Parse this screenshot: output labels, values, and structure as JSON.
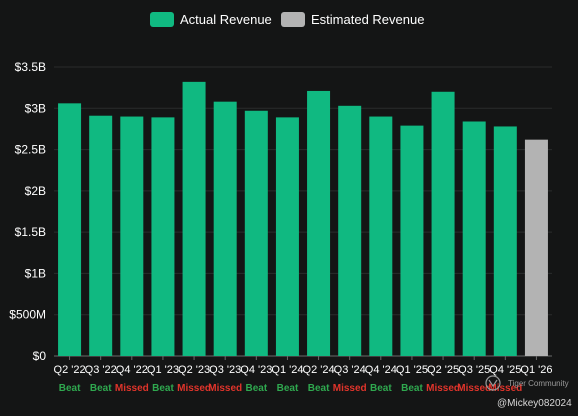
{
  "chart_data": {
    "type": "bar",
    "categories": [
      "Q2 '22",
      "Q3 '22",
      "Q4 '22",
      "Q1 '23",
      "Q2 '23",
      "Q3 '23",
      "Q4 '23",
      "Q1 '24",
      "Q2 '24",
      "Q3 '24",
      "Q4 '24",
      "Q1 '25",
      "Q2 '25",
      "Q3 '25",
      "Q4 '25",
      "Q1 '26"
    ],
    "series": [
      {
        "name": "Actual Revenue",
        "color": "#10b981",
        "values": [
          3.06,
          2.91,
          2.9,
          2.89,
          3.32,
          3.08,
          2.97,
          2.89,
          3.21,
          3.03,
          2.9,
          2.79,
          3.2,
          2.84,
          2.78,
          null
        ]
      },
      {
        "name": "Estimated Revenue",
        "color": "#b3b3b3",
        "values": [
          null,
          null,
          null,
          null,
          null,
          null,
          null,
          null,
          null,
          null,
          null,
          null,
          null,
          null,
          null,
          2.62
        ]
      }
    ],
    "result_labels": [
      "Beat",
      "Beat",
      "Missed",
      "Beat",
      "Missed",
      "Missed",
      "Beat",
      "Beat",
      "Beat",
      "Missed",
      "Beat",
      "Beat",
      "Missed",
      "Missed",
      "Missed",
      ""
    ],
    "result_colors": {
      "Beat": "#2fa84f",
      "Missed": "#e0342b"
    },
    "yticks": [
      "$0",
      "$500M",
      "$1B",
      "$1.5B",
      "$2B",
      "$2.5B",
      "$3B",
      "$3.5B"
    ],
    "ylim": [
      0,
      3.5
    ],
    "ytick_step": 0.5,
    "grid": true,
    "legend_position": "top-center",
    "title": "",
    "xlabel": "",
    "ylabel": ""
  },
  "watermark": {
    "brand": "Tiger Community",
    "handle": "@Mickey082024"
  }
}
